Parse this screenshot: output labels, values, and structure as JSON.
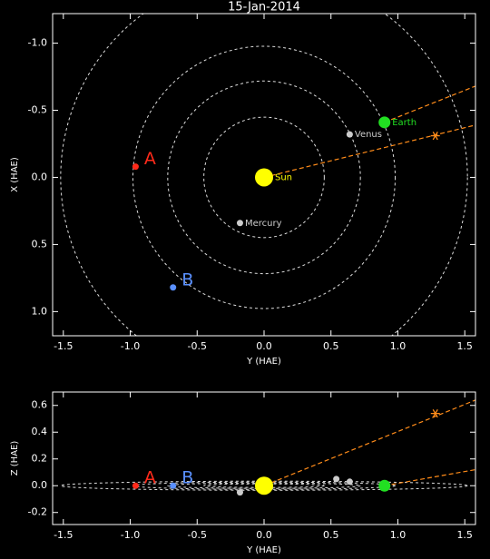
{
  "chart_data": [
    {
      "type": "scatter",
      "title": "15-Jan-2014",
      "x_label": "Y (HAE)",
      "y_label": "X (HAE)",
      "xlim": [
        -1.58,
        1.58
      ],
      "ylim": [
        -1.22,
        1.18
      ],
      "y_inverted": true,
      "xticks": [
        -1.5,
        {
          "value": -1,
          "label": "-1.0"
        },
        -0.5,
        {
          "value": 0,
          "label": "0.0"
        },
        0.5,
        {
          "value": 1,
          "label": "1.0"
        },
        1.5
      ],
      "yticks": [
        {
          "value": -1,
          "label": "-1.0"
        },
        -0.5,
        {
          "value": 0,
          "label": "0.0"
        },
        0.5,
        {
          "value": 1,
          "label": "1.0"
        }
      ],
      "orbits": [
        0.45,
        0.72,
        0.98,
        1.52
      ],
      "orbit_color": "#dddddd",
      "points": [
        {
          "label": "Sun",
          "color": "#ffff00",
          "x": 0,
          "y": 0
        },
        {
          "label": "Mercury",
          "color": "#cccccc",
          "x": -0.18,
          "y": 0.34
        },
        {
          "label": "Venus",
          "color": "#cccccc",
          "x": 0.64,
          "y": -0.32
        },
        {
          "label": "Earth",
          "color": "#22e022",
          "x": 0.9,
          "y": -0.41
        },
        {
          "label": "A",
          "color": "#ff2a1a",
          "x": -0.96,
          "y": -0.08
        },
        {
          "label": "B",
          "color": "#5a90ff",
          "x": -0.68,
          "y": 0.82
        },
        {
          "label": null,
          "color": "#ff8c1a",
          "marker": "asterisk",
          "x": 1.28,
          "y": -0.31
        }
      ],
      "lines": [
        {
          "color": "#ff8c1a",
          "x": [
            0,
            1.58
          ],
          "y": [
            0,
            -0.39
          ]
        },
        {
          "color": "#ff8c1a",
          "x": [
            0.9,
            1.58
          ],
          "y": [
            -0.41,
            -0.68
          ]
        }
      ]
    },
    {
      "type": "scatter",
      "x_label": "Y (HAE)",
      "y_label": "Z (HAE)",
      "xlim": [
        -1.58,
        1.58
      ],
      "ylim": [
        -0.29,
        0.7
      ],
      "xticks": [
        -1.5,
        {
          "value": -1,
          "label": "-1.0"
        },
        -0.5,
        {
          "value": 0,
          "label": "0.0"
        },
        0.5,
        {
          "value": 1,
          "label": "1.0"
        },
        1.5
      ],
      "yticks": [
        -0.2,
        {
          "value": 0,
          "label": "0.0"
        },
        0.2,
        0.4,
        0.6
      ],
      "orbits": [
        0.45,
        0.72,
        0.98,
        1.52
      ],
      "orbit_color": "#dddddd",
      "points": [
        {
          "label": null,
          "color": "#ffff00",
          "x": 0,
          "y": 0
        },
        {
          "label": null,
          "color": "#cccccc",
          "x": -0.18,
          "y": -0.05
        },
        {
          "label": null,
          "color": "#cccccc",
          "x": 0.64,
          "y": 0.03
        },
        {
          "label": null,
          "color": "#22e022",
          "x": 0.9,
          "y": 0
        },
        {
          "label": "A",
          "color": "#ff2a1a",
          "x": -0.96,
          "y": 0
        },
        {
          "label": "B",
          "color": "#5a90ff",
          "x": -0.68,
          "y": 0
        },
        {
          "label": null,
          "color": "#ff8c1a",
          "marker": "asterisk",
          "x": 1.28,
          "y": 0.54
        },
        {
          "label": null,
          "color": "#cccccc",
          "x": 0.54,
          "y": 0.05
        }
      ],
      "lines": [
        {
          "color": "#ff8c1a",
          "x": [
            0,
            1.58
          ],
          "y": [
            0,
            0.64
          ]
        },
        {
          "color": "#ff8c1a",
          "x": [
            0.9,
            1.58
          ],
          "y": [
            0,
            0.12
          ]
        }
      ]
    }
  ]
}
